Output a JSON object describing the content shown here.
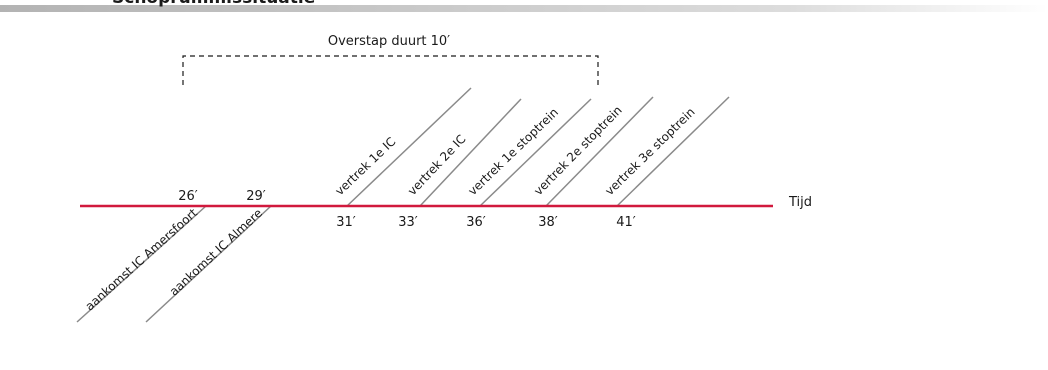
{
  "header": {
    "title": "Schoprummissituatie"
  },
  "diagram": {
    "axis_label": "Tijd",
    "bracket_label": "Overstap duurt 10′",
    "colors": {
      "timeline": "#d1193d",
      "lines": "#8a8a8a",
      "text": "#1a1a1a",
      "header_bar": "#bdbdbd"
    },
    "arrivals": [
      {
        "time": "26′",
        "label": "aankomst IC Amersfoort"
      },
      {
        "time": "29′",
        "label": "aankomst IC Almere"
      }
    ],
    "departures": [
      {
        "time": "31′",
        "label": "vertrek 1e IC"
      },
      {
        "time": "33′",
        "label": "vertrek 2e IC"
      },
      {
        "time": "36′",
        "label": "vertrek 1e stoptrein"
      },
      {
        "time": "38′",
        "label": "vertrek 2e stoptrein"
      },
      {
        "time": "41′",
        "label": "vertrek 3e stoptrein"
      }
    ]
  }
}
